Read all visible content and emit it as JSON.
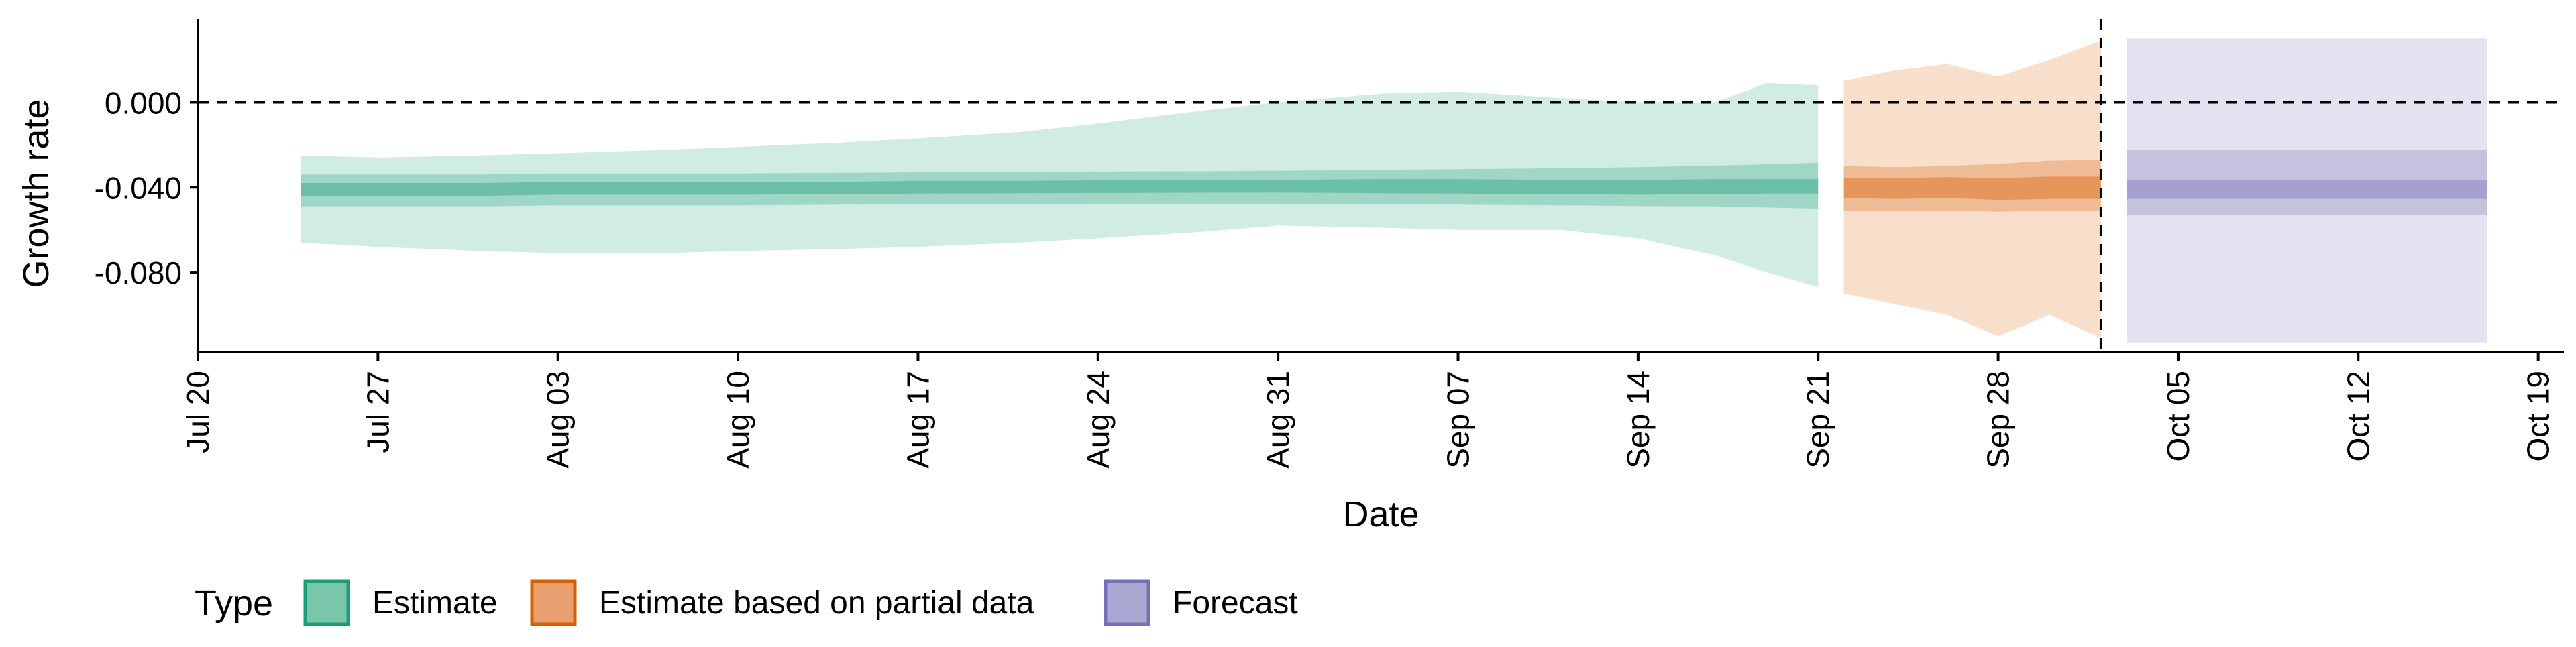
{
  "chart_data": {
    "type": "area",
    "xlabel": "Date",
    "ylabel": "Growth rate",
    "xlim": [
      "2020-07-20",
      "2020-10-20"
    ],
    "ylim": [
      -0.1175,
      0.038
    ],
    "x_ticks": [
      "2020-07-20",
      "2020-07-27",
      "2020-08-03",
      "2020-08-10",
      "2020-08-17",
      "2020-08-24",
      "2020-08-31",
      "2020-09-07",
      "2020-09-14",
      "2020-09-21",
      "2020-09-28",
      "2020-10-05",
      "2020-10-12",
      "2020-10-19"
    ],
    "x_tick_labels": [
      "Jul 20",
      "Jul 27",
      "Aug 03",
      "Aug 10",
      "Aug 17",
      "Aug 24",
      "Aug 31",
      "Sep 07",
      "Sep 14",
      "Sep 21",
      "Sep 28",
      "Oct 05",
      "Oct 12",
      "Oct 19"
    ],
    "y_ticks": [
      0.0,
      -0.04,
      -0.08
    ],
    "y_tick_labels": [
      "0.000",
      "-0.040",
      "-0.080"
    ],
    "hline_y": 0.0,
    "vline_x": "2020-10-02",
    "legend": {
      "title": "Type",
      "position": "bottom",
      "items": [
        {
          "label": "Estimate",
          "fill": "#7ac6aa",
          "stroke": "#1b9e77"
        },
        {
          "label": "Estimate based on partial data",
          "fill": "#e8a070",
          "stroke": "#d95f02"
        },
        {
          "label": "Forecast",
          "fill": "#aaa8d2",
          "stroke": "#7570b3"
        }
      ]
    },
    "series": [
      {
        "name": "Estimate",
        "color": "#1b9e77",
        "x": [
          "2020-07-24",
          "2020-07-27",
          "2020-07-31",
          "2020-08-03",
          "2020-08-07",
          "2020-08-10",
          "2020-08-14",
          "2020-08-17",
          "2020-08-21",
          "2020-08-24",
          "2020-08-28",
          "2020-08-31",
          "2020-09-04",
          "2020-09-07",
          "2020-09-11",
          "2020-09-14",
          "2020-09-17",
          "2020-09-19",
          "2020-09-21"
        ],
        "median": [
          -0.041,
          -0.041,
          -0.041,
          -0.0405,
          -0.0405,
          -0.0405,
          -0.0405,
          -0.04,
          -0.04,
          -0.0398,
          -0.0396,
          -0.0395,
          -0.0395,
          -0.0395,
          -0.0398,
          -0.04,
          -0.0398,
          -0.0396,
          -0.0396
        ],
        "lower_50": [
          -0.044,
          -0.044,
          -0.044,
          -0.0435,
          -0.0435,
          -0.0435,
          -0.0432,
          -0.043,
          -0.0428,
          -0.0427,
          -0.0426,
          -0.0425,
          -0.0428,
          -0.043,
          -0.0432,
          -0.0435,
          -0.0432,
          -0.043,
          -0.043
        ],
        "upper_50": [
          -0.038,
          -0.038,
          -0.038,
          -0.0375,
          -0.0375,
          -0.0375,
          -0.0375,
          -0.037,
          -0.037,
          -0.0368,
          -0.0366,
          -0.0365,
          -0.0362,
          -0.0362,
          -0.0365,
          -0.0365,
          -0.0362,
          -0.0362,
          -0.0362
        ],
        "lower_75": [
          -0.049,
          -0.049,
          -0.049,
          -0.0485,
          -0.0485,
          -0.0485,
          -0.0482,
          -0.048,
          -0.0478,
          -0.0477,
          -0.0477,
          -0.0477,
          -0.048,
          -0.0482,
          -0.0485,
          -0.0488,
          -0.049,
          -0.0495,
          -0.05
        ],
        "upper_75": [
          -0.034,
          -0.034,
          -0.034,
          -0.0335,
          -0.0335,
          -0.0335,
          -0.0332,
          -0.033,
          -0.0328,
          -0.0326,
          -0.0325,
          -0.0322,
          -0.0318,
          -0.0315,
          -0.031,
          -0.0305,
          -0.0298,
          -0.0292,
          -0.0285
        ],
        "lower_95": [
          -0.066,
          -0.068,
          -0.07,
          -0.071,
          -0.071,
          -0.07,
          -0.069,
          -0.068,
          -0.066,
          -0.064,
          -0.061,
          -0.058,
          -0.059,
          -0.06,
          -0.06,
          -0.064,
          -0.072,
          -0.08,
          -0.087
        ],
        "upper_95": [
          -0.025,
          -0.026,
          -0.025,
          -0.024,
          -0.0225,
          -0.021,
          -0.019,
          -0.017,
          -0.014,
          -0.01,
          -0.004,
          0.0,
          0.004,
          0.005,
          0.002,
          0.0,
          0.0,
          0.009,
          0.008
        ]
      },
      {
        "name": "Estimate based on partial data",
        "color": "#d95f02",
        "x": [
          "2020-09-22",
          "2020-09-24",
          "2020-09-26",
          "2020-09-28",
          "2020-09-30",
          "2020-10-02"
        ],
        "median": [
          -0.04,
          -0.0405,
          -0.04,
          -0.0408,
          -0.04,
          -0.04
        ],
        "lower_50": [
          -0.045,
          -0.0455,
          -0.045,
          -0.046,
          -0.0455,
          -0.0455
        ],
        "upper_50": [
          -0.0355,
          -0.0358,
          -0.0352,
          -0.0358,
          -0.035,
          -0.035
        ],
        "lower_75": [
          -0.051,
          -0.0512,
          -0.051,
          -0.0515,
          -0.051,
          -0.051
        ],
        "upper_75": [
          -0.03,
          -0.0305,
          -0.03,
          -0.029,
          -0.0275,
          -0.027
        ],
        "lower_95": [
          -0.09,
          -0.095,
          -0.1,
          -0.11,
          -0.1,
          -0.111
        ],
        "upper_95": [
          0.01,
          0.015,
          0.018,
          0.012,
          0.02,
          0.029
        ]
      },
      {
        "name": "Forecast",
        "color": "#7570b3",
        "x": [
          "2020-10-03",
          "2020-10-17"
        ],
        "median": [
          -0.041,
          -0.041
        ],
        "lower_50": [
          -0.0455,
          -0.0455
        ],
        "upper_50": [
          -0.0365,
          -0.0365
        ],
        "lower_75": [
          -0.053,
          -0.053
        ],
        "upper_75": [
          -0.0225,
          -0.0225
        ],
        "lower_95": [
          -0.113,
          -0.113
        ],
        "upper_95": [
          0.03,
          0.03
        ]
      }
    ]
  }
}
